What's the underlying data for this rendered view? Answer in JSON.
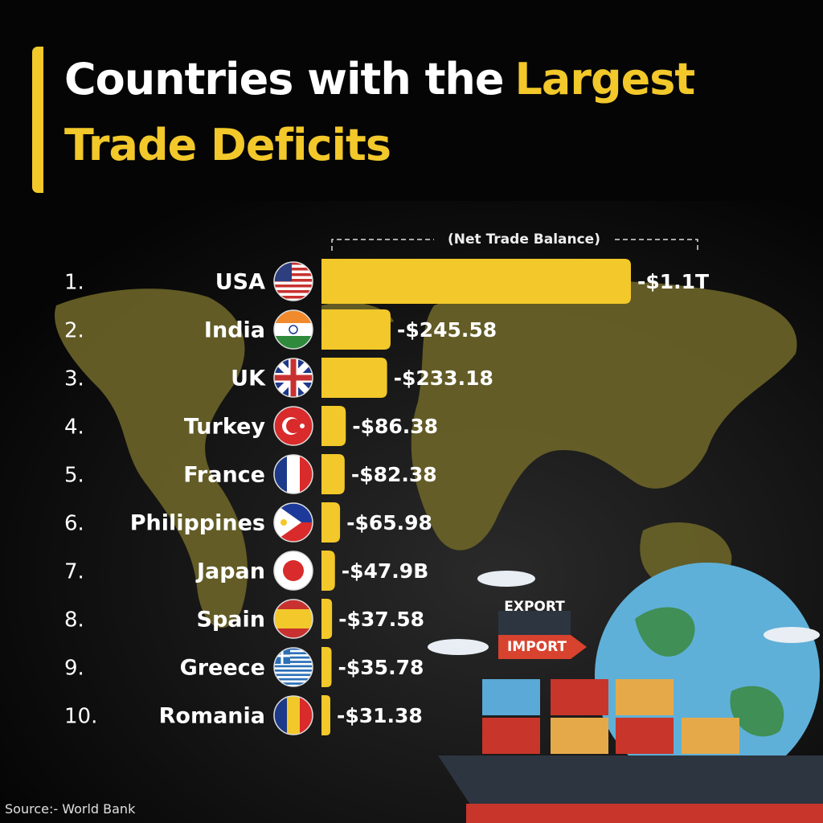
{
  "chart_data": {
    "type": "bar",
    "orientation": "horizontal",
    "title_lines": [
      {
        "white": "Countries with the",
        "yellow": "Largest"
      },
      {
        "yellow": "Trade Deficits"
      }
    ],
    "subtitle": "(Net Trade Balance)",
    "ranks": [
      "1.",
      "2.",
      "3.",
      "4.",
      "5.",
      "6.",
      "7.",
      "8.",
      "9.",
      "10."
    ],
    "categories": [
      "USA",
      "India",
      "UK",
      "Turkey",
      "France",
      "Philippines",
      "Japan",
      "Spain",
      "Greece",
      "Romania"
    ],
    "values": [
      -1100,
      -245.58,
      -233.18,
      -86.38,
      -82.38,
      -65.98,
      -47.9,
      -37.58,
      -35.78,
      -31.38
    ],
    "value_labels": [
      "-$1.1T",
      "-$245.58",
      "-$233.18",
      "-$86.38",
      "-$82.38",
      "-$65.98",
      "-$47.9B",
      "-$37.58",
      "-$35.78",
      "-$31.38"
    ],
    "color": "#f2c82a",
    "illustration_labels": [
      "EXPORT",
      "IMPORT"
    ],
    "source": "Source:- World Bank"
  }
}
